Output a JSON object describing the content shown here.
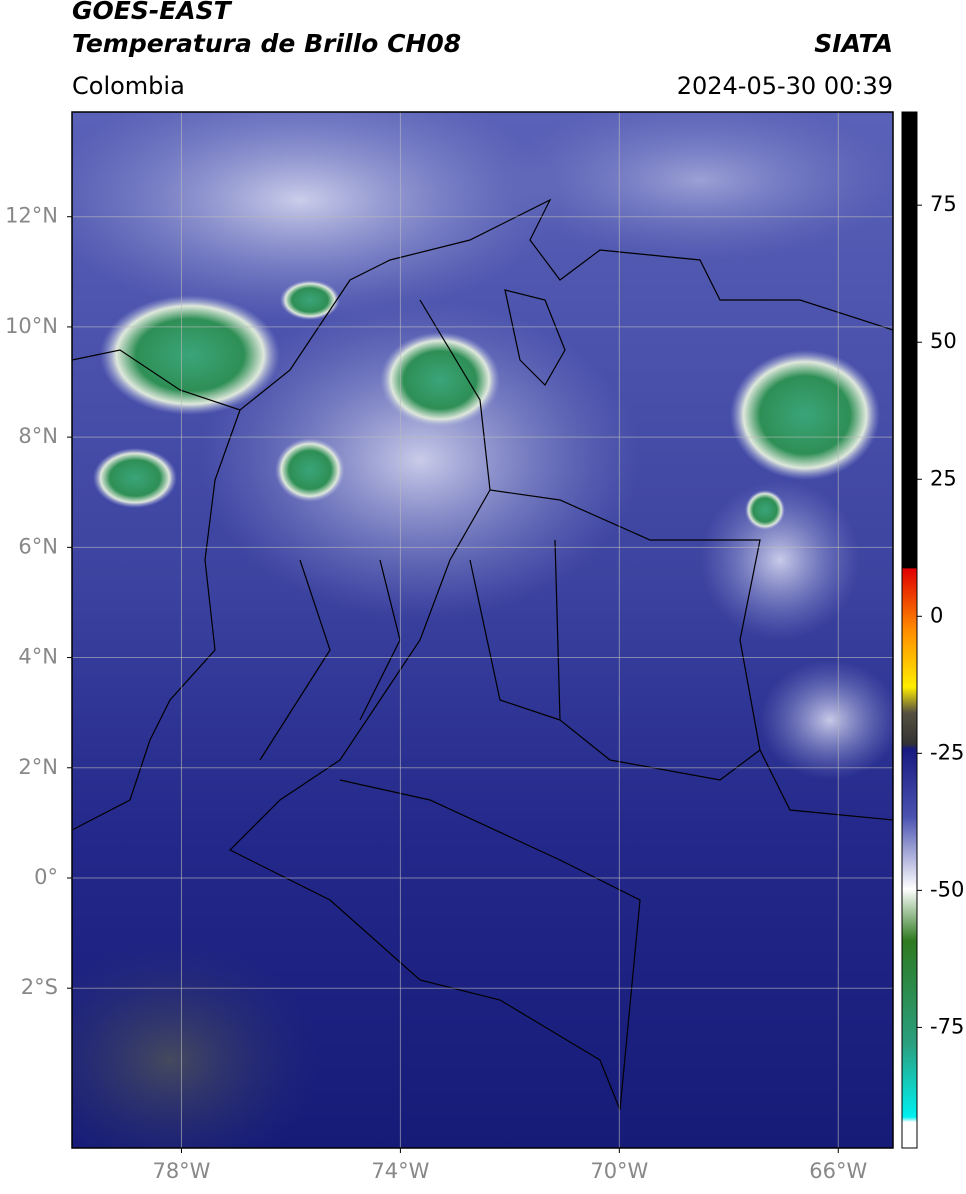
{
  "header": {
    "title": "GOES-EAST",
    "subtitle": "Temperatura de Brillo CH08",
    "region": "Colombia",
    "source": "SIATA",
    "datetime": "2024-05-30 00:39"
  },
  "map": {
    "xlim": [
      -80,
      -65
    ],
    "ylim": [
      -4.9,
      13.9
    ],
    "xticks": [
      {
        "value": -78,
        "label": "78°W"
      },
      {
        "value": -74,
        "label": "74°W"
      },
      {
        "value": -70,
        "label": "70°W"
      },
      {
        "value": -66,
        "label": "66°W"
      }
    ],
    "yticks": [
      {
        "value": 12,
        "label": "12°N"
      },
      {
        "value": 10,
        "label": "10°N"
      },
      {
        "value": 8,
        "label": "8°N"
      },
      {
        "value": 6,
        "label": "6°N"
      },
      {
        "value": 4,
        "label": "4°N"
      },
      {
        "value": 2,
        "label": "2°N"
      },
      {
        "value": 0,
        "label": "0°"
      },
      {
        "value": -2,
        "label": "2°S"
      }
    ],
    "grid": true
  },
  "colorbar": {
    "lim": [
      -97,
      92
    ],
    "ticks": [
      75,
      50,
      25,
      0,
      -25,
      -50,
      -75
    ]
  }
}
